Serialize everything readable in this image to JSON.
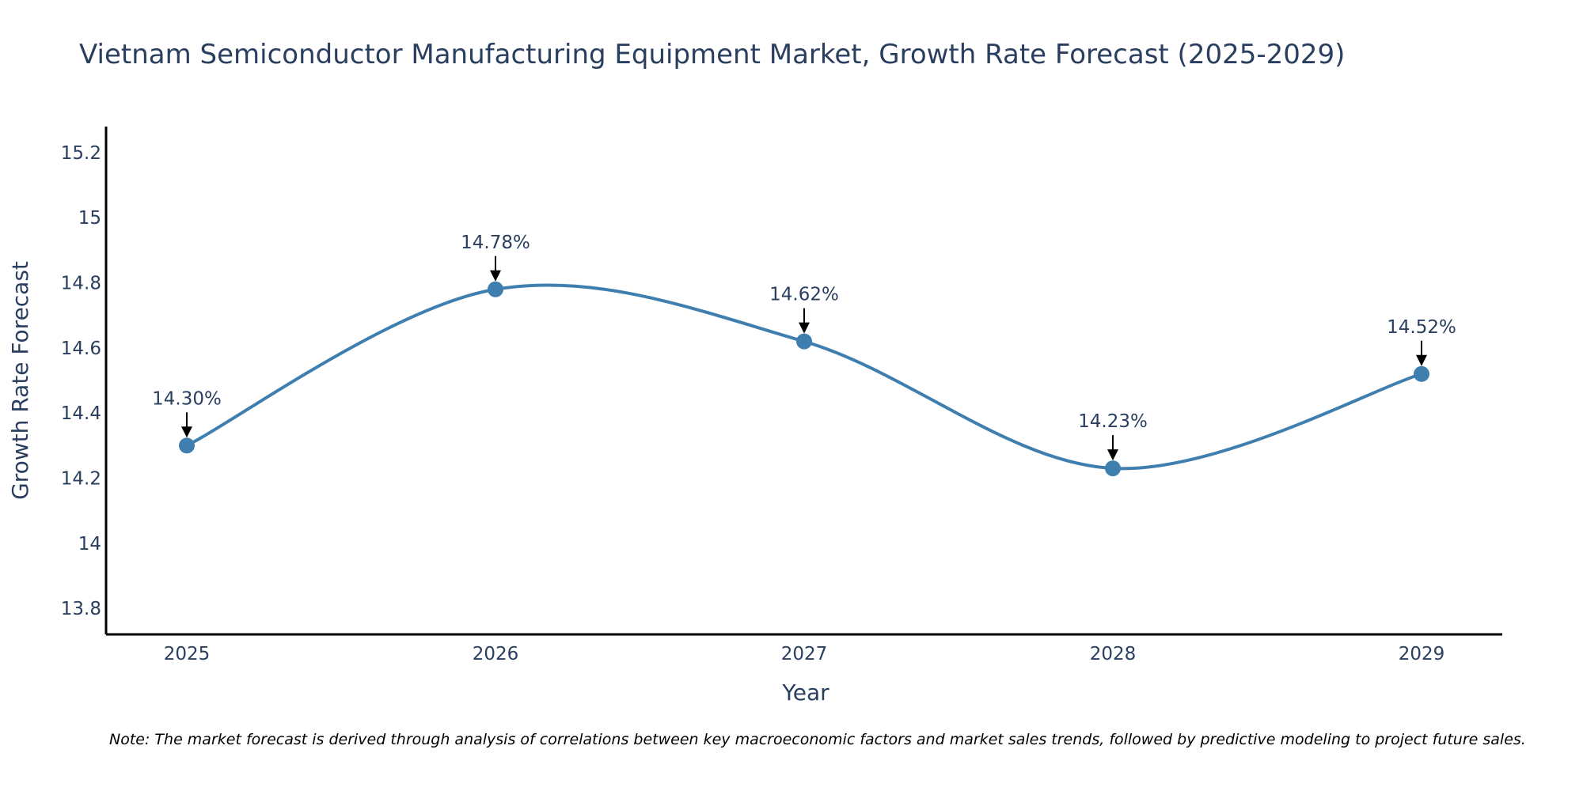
{
  "chart_data": {
    "type": "line",
    "title": "Vietnam Semiconductor Manufacturing Equipment Market, Growth Rate Forecast (2025-2029)",
    "xlabel": "Year",
    "ylabel": "Growth Rate Forecast",
    "categories": [
      "2025",
      "2026",
      "2027",
      "2028",
      "2029"
    ],
    "series": [
      {
        "name": "Growth Rate Forecast",
        "values": [
          14.3,
          14.78,
          14.62,
          14.23,
          14.52
        ],
        "labels": [
          "14.30%",
          "14.78%",
          "14.62%",
          "14.23%",
          "14.52%"
        ]
      }
    ],
    "ylim": [
      13.72,
      15.28
    ],
    "yticks": [
      13.8,
      14,
      14.2,
      14.4,
      14.6,
      14.8,
      15,
      15.2
    ],
    "ytick_labels": [
      "13.8",
      "14",
      "14.2",
      "14.4",
      "14.6",
      "14.8",
      "15",
      "15.2"
    ],
    "grid": false,
    "note": "Note: The market forecast is derived through analysis of correlations between key macroeconomic factors and market sales trends, followed by predictive modeling to project future sales.",
    "colors": {
      "line": "#3f7fb0",
      "marker": "#3f7fb0",
      "text": "#2a3f5f",
      "axis": "#000000",
      "arrow": "#000000"
    }
  }
}
